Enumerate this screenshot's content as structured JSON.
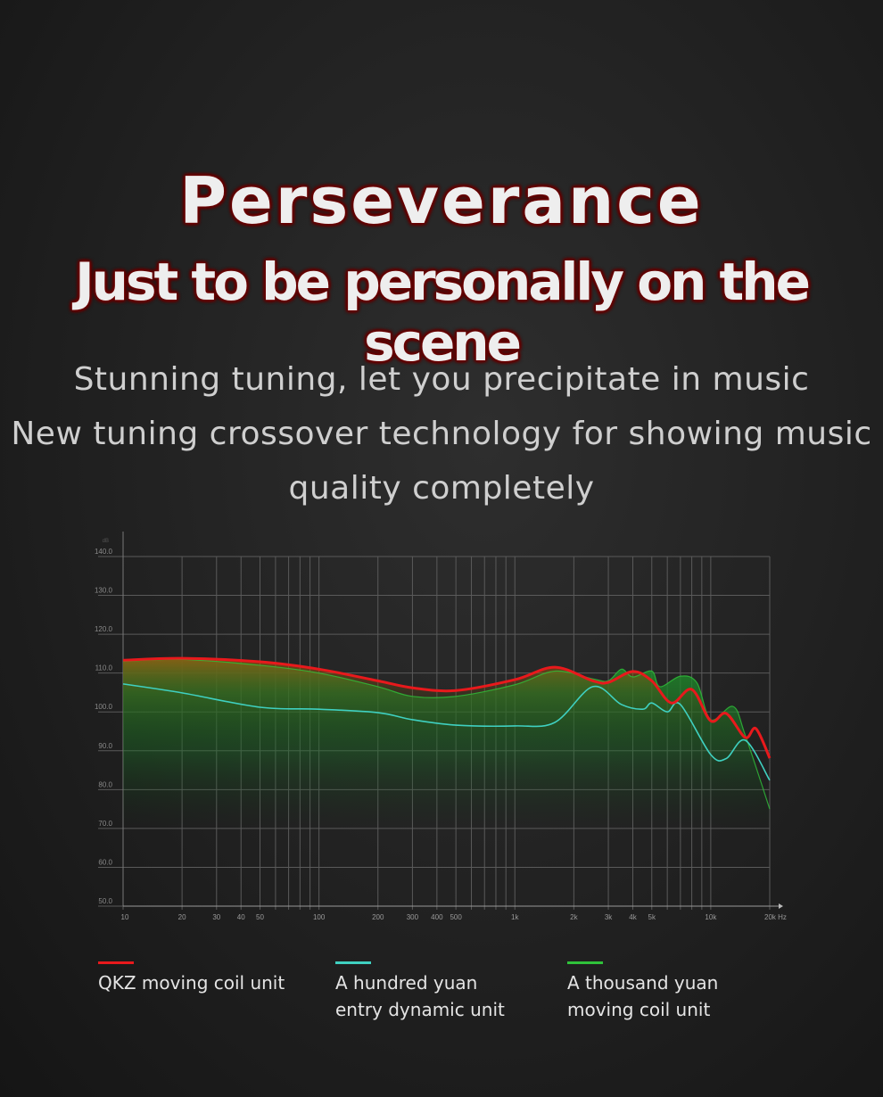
{
  "header": {
    "title": "Perseverance",
    "subtitle": "Just to be personally on the scene"
  },
  "description": [
    "Stunning tuning, let you precipitate in music",
    "New tuning crossover technology for showing music",
    "quality completely"
  ],
  "chart_data": {
    "type": "line",
    "title": "",
    "xlabel": "Hz",
    "ylabel": "dB",
    "x_scale": "log",
    "xlim": [
      10,
      20000
    ],
    "ylim": [
      50,
      140
    ],
    "grid": true,
    "legend_placement": "bottom",
    "y_ticks": [
      "50.0",
      "60.0",
      "70.0",
      "80.0",
      "90.0",
      "100.0",
      "110.0",
      "120.0",
      "130.0",
      "140.0"
    ],
    "x_ticks": [
      {
        "v": 10,
        "label": "10"
      },
      {
        "v": 20,
        "label": "20"
      },
      {
        "v": 30,
        "label": "30"
      },
      {
        "v": 40,
        "label": "40"
      },
      {
        "v": 50,
        "label": "50"
      },
      {
        "v": 100,
        "label": "100"
      },
      {
        "v": 200,
        "label": "200"
      },
      {
        "v": 300,
        "label": "300"
      },
      {
        "v": 400,
        "label": "400"
      },
      {
        "v": 500,
        "label": "500"
      },
      {
        "v": 1000,
        "label": "1k"
      },
      {
        "v": 2000,
        "label": "2k"
      },
      {
        "v": 3000,
        "label": "3k"
      },
      {
        "v": 4000,
        "label": "4k"
      },
      {
        "v": 5000,
        "label": "5k"
      },
      {
        "v": 10000,
        "label": "10k"
      },
      {
        "v": 20000,
        "label": "20k Hz"
      }
    ],
    "series": [
      {
        "name": "A thousand yuan moving coil unit",
        "color": "#2fc23a",
        "x": [
          10,
          20,
          50,
          100,
          200,
          300,
          500,
          1000,
          1600,
          2500,
          3000,
          3500,
          4000,
          5000,
          5500,
          7000,
          8500,
          10000,
          13000,
          15000,
          20000
        ],
        "y": [
          113,
          113.5,
          112,
          110,
          106.5,
          104,
          104,
          107,
          110.5,
          108.5,
          108,
          111,
          109,
          110.5,
          106.5,
          109.2,
          107.5,
          98,
          101.4,
          94,
          75
        ]
      },
      {
        "name": "A hundred yuan entry dynamic unit",
        "color": "#3fd0c0",
        "x": [
          10,
          20,
          50,
          100,
          200,
          300,
          500,
          1000,
          1600,
          2500,
          3500,
          4500,
          5000,
          6000,
          7000,
          10000,
          12000,
          15000,
          20000
        ],
        "y": [
          107.2,
          104.9,
          101.2,
          100.7,
          99.8,
          98,
          96.6,
          96.4,
          97.3,
          106.5,
          101.9,
          100.7,
          102.3,
          100,
          101.9,
          89,
          88,
          92.7,
          82.4
        ]
      },
      {
        "name": "QKZ moving coil unit",
        "color": "#e8191c",
        "x": [
          10,
          20,
          50,
          100,
          200,
          300,
          500,
          1000,
          1600,
          2500,
          3000,
          4000,
          5000,
          6300,
          8000,
          10000,
          12000,
          15000,
          17000,
          20000
        ],
        "y": [
          113.3,
          113.8,
          112.9,
          111,
          108,
          106.2,
          105.5,
          108.3,
          111.5,
          108,
          107.6,
          110.4,
          108,
          102.3,
          105.8,
          97.7,
          99.6,
          93.4,
          95.7,
          88.1
        ]
      }
    ]
  },
  "legend": [
    {
      "lines": [
        "QKZ moving coil unit"
      ],
      "color": "#e8191c"
    },
    {
      "lines": [
        "A hundred yuan",
        "entry dynamic unit"
      ],
      "color": "#3fd0c0"
    },
    {
      "lines": [
        "A thousand yuan",
        "moving coil unit"
      ],
      "color": "#2fc23a"
    }
  ]
}
